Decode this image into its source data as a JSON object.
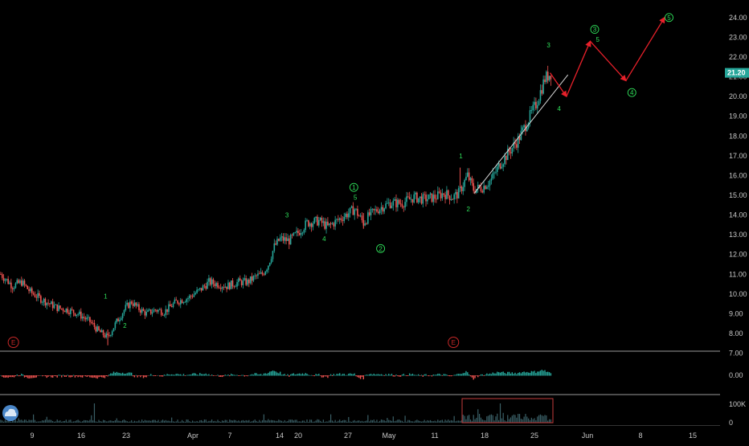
{
  "chart_data": {
    "type": "candlestick",
    "symbol_badge": "E",
    "price_axis": {
      "ticks": [
        "24.00",
        "23.00",
        "22.00",
        "21.00",
        "20.00",
        "19.00",
        "18.00",
        "17.00",
        "16.00",
        "15.00",
        "14.00",
        "13.00",
        "12.00",
        "11.00",
        "10.00",
        "9.00",
        "8.00",
        "7.00"
      ],
      "ylim": [
        6.9,
        24.4
      ],
      "last_price": "21.20"
    },
    "oscillator_axis": {
      "ticks": [
        "0.00"
      ]
    },
    "volume_axis": {
      "ticks": [
        "100K",
        "0"
      ]
    },
    "time_axis": {
      "ticks": [
        "9",
        "16",
        "23",
        "Apr",
        "7",
        "14",
        "20",
        "27",
        "May",
        "11",
        "18",
        "25",
        "Jun",
        "8",
        "15"
      ]
    },
    "price_path": [
      [
        0,
        11.0
      ],
      [
        8,
        10.4
      ],
      [
        14,
        10.6
      ],
      [
        20,
        10.1
      ],
      [
        28,
        9.7
      ],
      [
        38,
        9.3
      ],
      [
        45,
        9.2
      ],
      [
        52,
        9.0
      ],
      [
        60,
        8.6
      ],
      [
        66,
        8.1
      ],
      [
        72,
        7.8
      ],
      [
        78,
        8.6
      ],
      [
        84,
        9.3
      ],
      [
        88,
        9.6
      ],
      [
        92,
        9.3
      ],
      [
        98,
        9.0
      ],
      [
        104,
        9.2
      ],
      [
        110,
        9.1
      ],
      [
        118,
        9.6
      ],
      [
        126,
        9.8
      ],
      [
        134,
        10.2
      ],
      [
        140,
        10.6
      ],
      [
        146,
        10.5
      ],
      [
        152,
        10.4
      ],
      [
        160,
        10.6
      ],
      [
        166,
        10.6
      ],
      [
        172,
        10.9
      ],
      [
        176,
        11.0
      ],
      [
        180,
        11.5
      ],
      [
        184,
        12.4
      ],
      [
        188,
        12.8
      ],
      [
        194,
        12.7
      ],
      [
        200,
        13.1
      ],
      [
        206,
        13.6
      ],
      [
        214,
        13.7
      ],
      [
        220,
        13.4
      ],
      [
        226,
        13.7
      ],
      [
        232,
        14.0
      ],
      [
        238,
        14.3
      ],
      [
        244,
        13.6
      ],
      [
        248,
        14.0
      ],
      [
        256,
        14.4
      ],
      [
        262,
        14.6
      ],
      [
        270,
        14.6
      ],
      [
        278,
        14.9
      ],
      [
        284,
        14.8
      ],
      [
        292,
        14.9
      ],
      [
        298,
        15.1
      ],
      [
        304,
        14.9
      ],
      [
        308,
        15.1
      ],
      [
        314,
        16.0
      ],
      [
        318,
        15.3
      ],
      [
        324,
        15.4
      ],
      [
        330,
        15.8
      ],
      [
        336,
        16.6
      ],
      [
        342,
        17.2
      ],
      [
        348,
        17.8
      ],
      [
        354,
        18.7
      ],
      [
        360,
        19.6
      ],
      [
        366,
        20.9
      ],
      [
        370,
        21.2
      ]
    ],
    "trendline": {
      "x": [
        319,
        382
      ],
      "y": [
        15.1,
        21.1
      ]
    },
    "projection_path": [
      [
        370,
        21.2
      ],
      [
        381,
        20.0
      ],
      [
        397,
        22.8
      ],
      [
        421,
        20.8
      ],
      [
        447,
        24.0
      ]
    ],
    "wave_labels": [
      {
        "text": "1",
        "circled": false,
        "x": 71,
        "y": 9.9
      },
      {
        "text": "2",
        "circled": false,
        "x": 84,
        "y": 8.4
      },
      {
        "text": "3",
        "circled": false,
        "x": 193,
        "y": 14.0
      },
      {
        "text": "4",
        "circled": false,
        "x": 218,
        "y": 12.8
      },
      {
        "text": "1",
        "circled": true,
        "x": 238,
        "y": 15.4
      },
      {
        "text": "5",
        "circled": false,
        "x": 239,
        "y": 14.9
      },
      {
        "text": "2",
        "circled": true,
        "x": 256,
        "y": 12.3
      },
      {
        "text": "1",
        "circled": false,
        "x": 310,
        "y": 17.0
      },
      {
        "text": "2",
        "circled": false,
        "x": 315,
        "y": 14.3
      },
      {
        "text": "3",
        "circled": false,
        "x": 369,
        "y": 22.6
      },
      {
        "text": "4",
        "circled": false,
        "x": 376,
        "y": 19.4
      },
      {
        "text": "3",
        "circled": true,
        "x": 400,
        "y": 23.4
      },
      {
        "text": "5",
        "circled": false,
        "x": 402,
        "y": 22.9
      },
      {
        "text": "4",
        "circled": true,
        "x": 425,
        "y": 20.2
      },
      {
        "text": "5",
        "circled": true,
        "x": 450,
        "y": 24.0
      }
    ],
    "earnings_markers": [
      {
        "text": "E",
        "x": 9
      },
      {
        "text": "E",
        "x": 305
      }
    ]
  },
  "colors": {
    "background": "#000000",
    "up": "#26a69a",
    "down": "#ef5350",
    "osc_up": "#26a69a",
    "osc_down": "#ef5350",
    "volume": "#3a5f66",
    "wave_label": "#2fe05a",
    "projection": "#e8202a",
    "trendline": "#d8d8d8",
    "axis_text": "#c8c8c8",
    "last_price_tag": "#26a69a",
    "earnings": "#c62828",
    "logo": "#4a86c7",
    "separator": "#9a9a9a"
  },
  "logo_icon": "tradingview-cloud-icon"
}
